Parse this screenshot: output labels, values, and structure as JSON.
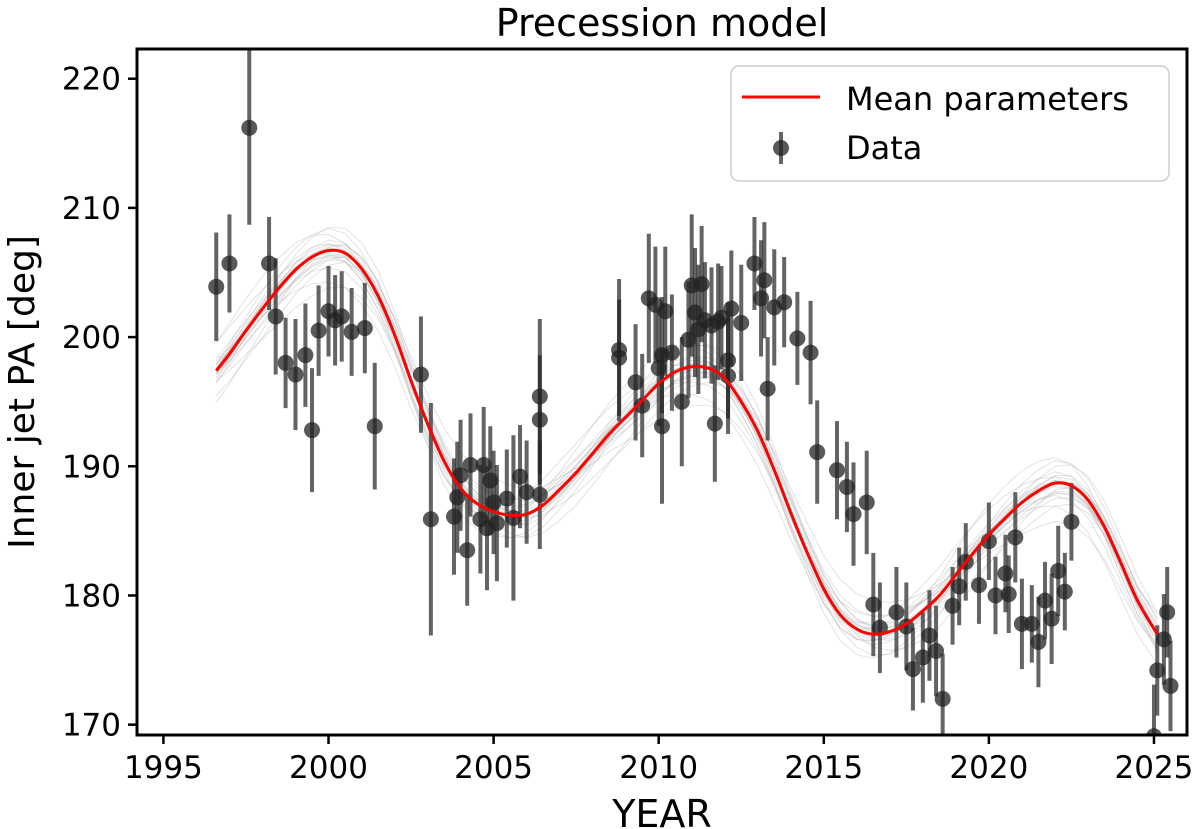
{
  "chart_data": {
    "type": "scatter",
    "title": "Precession model",
    "xlabel": "YEAR",
    "ylabel": "Inner jet PA [deg]",
    "xlim": [
      1994.2,
      2026.0
    ],
    "ylim": [
      169.2,
      222.3
    ],
    "xticks": [
      1995,
      2000,
      2005,
      2010,
      2015,
      2020,
      2025
    ],
    "yticks": [
      170,
      180,
      190,
      200,
      210,
      220
    ],
    "legend_position": "top-right",
    "legend": {
      "model_label": "Mean parameters",
      "data_label": "Data"
    },
    "colors": {
      "model": "#ff0000",
      "data": "#222222",
      "samples": "#b0b0b0"
    },
    "model": {
      "name": "Mean parameters",
      "x": [
        1996.6,
        1997.0,
        1997.5,
        1998.0,
        1998.5,
        1999.0,
        1999.5,
        2000.0,
        2000.5,
        2001.0,
        2001.5,
        2002.0,
        2002.5,
        2003.0,
        2003.5,
        2004.0,
        2004.5,
        2005.0,
        2005.5,
        2006.0,
        2006.5,
        2007.0,
        2007.5,
        2008.0,
        2008.5,
        2009.0,
        2009.5,
        2010.0,
        2010.5,
        2011.0,
        2011.5,
        2012.0,
        2012.5,
        2013.0,
        2013.5,
        2014.0,
        2014.5,
        2015.0,
        2015.5,
        2016.0,
        2016.5,
        2017.0,
        2017.5,
        2018.0,
        2018.5,
        2019.0,
        2019.5,
        2020.0,
        2020.5,
        2021.0,
        2021.5,
        2022.0,
        2022.5,
        2023.0,
        2023.5,
        2024.0,
        2024.5,
        2025.1
      ],
      "y": [
        197.4,
        198.7,
        200.5,
        202.2,
        203.8,
        205.2,
        206.2,
        206.7,
        206.5,
        205.3,
        203.2,
        200.2,
        196.6,
        193.3,
        190.4,
        188.3,
        187.1,
        186.5,
        186.2,
        186.3,
        187.0,
        188.2,
        189.5,
        191.0,
        192.5,
        193.8,
        195.1,
        196.4,
        197.3,
        197.7,
        197.6,
        196.8,
        195.0,
        192.7,
        189.7,
        186.4,
        183.3,
        180.5,
        178.5,
        177.4,
        177.0,
        177.2,
        177.8,
        178.8,
        180.0,
        181.6,
        183.2,
        184.7,
        186.0,
        187.2,
        188.1,
        188.7,
        188.5,
        187.4,
        185.3,
        182.5,
        179.6,
        177.0
      ]
    },
    "series": [
      {
        "name": "Data",
        "points": [
          [
            1996.6,
            203.9,
            4.2
          ],
          [
            1997.0,
            205.7,
            3.8
          ],
          [
            1997.6,
            216.2,
            7.5
          ],
          [
            1998.2,
            205.7,
            3.6
          ],
          [
            1998.4,
            201.6,
            4.5
          ],
          [
            1998.7,
            198.0,
            3.5
          ],
          [
            1999.0,
            197.1,
            4.3
          ],
          [
            1999.3,
            198.6,
            4.0
          ],
          [
            1999.5,
            192.8,
            4.8
          ],
          [
            1999.7,
            200.5,
            3.5
          ],
          [
            2000.0,
            202.0,
            3.5
          ],
          [
            2000.2,
            201.3,
            3.5
          ],
          [
            2000.4,
            201.6,
            3.5
          ],
          [
            2000.7,
            200.4,
            3.4
          ],
          [
            2001.1,
            200.7,
            3.5
          ],
          [
            2001.4,
            193.1,
            4.9
          ],
          [
            2002.8,
            197.1,
            4.5
          ],
          [
            2003.1,
            185.9,
            9.0
          ],
          [
            2003.8,
            186.1,
            4.5
          ],
          [
            2003.9,
            187.6,
            4.3
          ],
          [
            2004.0,
            189.3,
            4.3
          ],
          [
            2004.2,
            183.5,
            4.3
          ],
          [
            2004.3,
            190.1,
            4.0
          ],
          [
            2004.6,
            185.9,
            4.2
          ],
          [
            2004.7,
            190.1,
            4.5
          ],
          [
            2004.8,
            185.2,
            4.8
          ],
          [
            2004.9,
            188.9,
            4.2
          ],
          [
            2005.0,
            187.2,
            4.0
          ],
          [
            2005.1,
            185.6,
            4.5
          ],
          [
            2005.4,
            187.5,
            3.8
          ],
          [
            2005.6,
            186.0,
            6.4
          ],
          [
            2005.8,
            189.2,
            4.0
          ],
          [
            2006.0,
            188.0,
            4.0
          ],
          [
            2006.4,
            195.4,
            6.0
          ],
          [
            2006.4,
            193.6,
            5.0
          ],
          [
            2006.4,
            187.8,
            4.2
          ],
          [
            2008.8,
            198.4,
            4.5
          ],
          [
            2008.8,
            199.0,
            5.5
          ],
          [
            2009.3,
            196.5,
            4.5
          ],
          [
            2009.5,
            194.7,
            4.0
          ],
          [
            2009.7,
            203.0,
            5.0
          ],
          [
            2009.9,
            202.5,
            4.5
          ],
          [
            2010.0,
            197.6,
            4.5
          ],
          [
            2010.1,
            198.6,
            4.5
          ],
          [
            2010.1,
            193.1,
            6.0
          ],
          [
            2010.2,
            202.0,
            5.0
          ],
          [
            2010.4,
            198.8,
            4.5
          ],
          [
            2010.7,
            195.0,
            5.0
          ],
          [
            2010.9,
            199.8,
            4.5
          ],
          [
            2011.0,
            204.0,
            5.5
          ],
          [
            2011.1,
            201.9,
            5.0
          ],
          [
            2011.2,
            200.6,
            5.0
          ],
          [
            2011.3,
            204.1,
            4.5
          ],
          [
            2011.4,
            201.3,
            4.5
          ],
          [
            2011.6,
            200.9,
            4.5
          ],
          [
            2011.7,
            193.3,
            4.5
          ],
          [
            2011.8,
            201.2,
            4.5
          ],
          [
            2011.9,
            201.5,
            4.0
          ],
          [
            2012.1,
            198.2,
            4.5
          ],
          [
            2012.1,
            197.0,
            4.5
          ],
          [
            2012.2,
            202.2,
            4.5
          ],
          [
            2012.5,
            201.1,
            4.5
          ],
          [
            2012.9,
            205.7,
            3.6
          ],
          [
            2013.1,
            203.0,
            4.5
          ],
          [
            2013.2,
            204.4,
            4.5
          ],
          [
            2013.3,
            196.0,
            4.0
          ],
          [
            2013.5,
            202.3,
            4.5
          ],
          [
            2013.8,
            202.7,
            3.5
          ],
          [
            2014.2,
            199.9,
            3.6
          ],
          [
            2014.6,
            198.8,
            4.0
          ],
          [
            2014.8,
            191.1,
            4.0
          ],
          [
            2015.4,
            189.7,
            3.8
          ],
          [
            2015.7,
            188.4,
            3.5
          ],
          [
            2015.9,
            186.3,
            4.0
          ],
          [
            2016.3,
            187.2,
            4.0
          ],
          [
            2016.5,
            179.3,
            4.0
          ],
          [
            2016.7,
            177.5,
            3.5
          ],
          [
            2017.2,
            178.7,
            3.5
          ],
          [
            2017.5,
            177.6,
            3.4
          ],
          [
            2017.7,
            174.3,
            3.2
          ],
          [
            2018.0,
            175.2,
            3.5
          ],
          [
            2018.2,
            176.9,
            3.5
          ],
          [
            2018.4,
            175.7,
            3.5
          ],
          [
            2018.6,
            172.0,
            3.5
          ],
          [
            2018.9,
            179.2,
            3.0
          ],
          [
            2019.1,
            180.7,
            3.0
          ],
          [
            2019.3,
            182.6,
            3.0
          ],
          [
            2019.7,
            180.8,
            3.0
          ],
          [
            2020.0,
            184.2,
            3.0
          ],
          [
            2020.2,
            180.0,
            3.0
          ],
          [
            2020.5,
            181.7,
            3.0
          ],
          [
            2020.6,
            180.1,
            3.0
          ],
          [
            2020.8,
            184.5,
            3.5
          ],
          [
            2021.0,
            177.8,
            3.5
          ],
          [
            2021.3,
            177.8,
            3.0
          ],
          [
            2021.5,
            176.4,
            3.5
          ],
          [
            2021.7,
            179.6,
            3.0
          ],
          [
            2021.9,
            178.2,
            3.5
          ],
          [
            2022.1,
            181.9,
            3.5
          ],
          [
            2022.3,
            180.3,
            3.0
          ],
          [
            2022.5,
            185.7,
            3.0
          ],
          [
            2025.0,
            169.1,
            4.0
          ],
          [
            2025.1,
            174.2,
            3.5
          ],
          [
            2025.3,
            176.6,
            3.5
          ],
          [
            2025.4,
            178.7,
            3.5
          ],
          [
            2025.5,
            173.0,
            3.5
          ]
        ]
      }
    ]
  }
}
